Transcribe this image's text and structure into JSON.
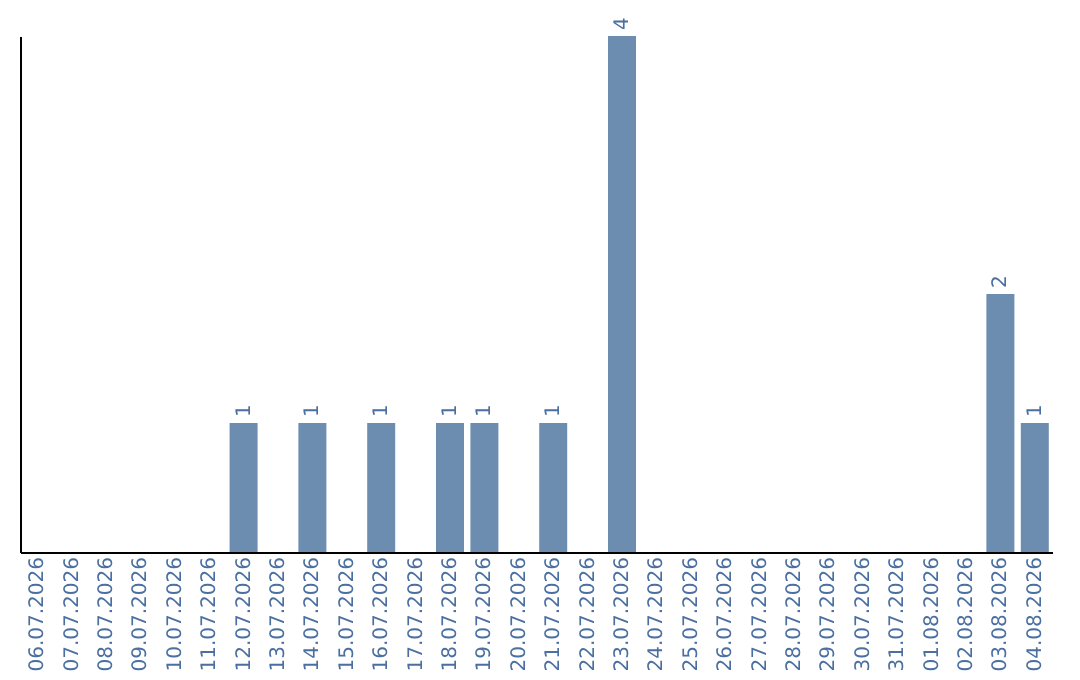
{
  "chart_data": {
    "type": "bar",
    "categories": [
      "06.07.2026",
      "07.07.2026",
      "08.07.2026",
      "09.07.2026",
      "10.07.2026",
      "11.07.2026",
      "12.07.2026",
      "13.07.2026",
      "14.07.2026",
      "15.07.2026",
      "16.07.2026",
      "17.07.2026",
      "18.07.2026",
      "19.07.2026",
      "20.07.2026",
      "21.07.2026",
      "22.07.2026",
      "23.07.2026",
      "24.07.2026",
      "25.07.2026",
      "26.07.2026",
      "27.07.2026",
      "28.07.2026",
      "29.07.2026",
      "30.07.2026",
      "31.07.2026",
      "01.08.2026",
      "02.08.2026",
      "03.08.2026",
      "04.08.2026"
    ],
    "values": [
      0,
      0,
      0,
      0,
      0,
      0,
      1,
      0,
      1,
      0,
      1,
      0,
      1,
      1,
      0,
      1,
      0,
      4,
      0,
      0,
      0,
      0,
      0,
      0,
      0,
      0,
      0,
      0,
      2,
      1
    ],
    "value_labels": [
      null,
      null,
      null,
      null,
      null,
      null,
      "1",
      null,
      "1",
      null,
      "1",
      null,
      "1",
      "1",
      null,
      "1",
      null,
      "4",
      null,
      null,
      null,
      null,
      null,
      null,
      null,
      null,
      null,
      null,
      "2",
      "1"
    ],
    "color": "#6c8db0",
    "ylim": [
      0,
      4
    ],
    "tick_labels": "x",
    "grid": false
  }
}
